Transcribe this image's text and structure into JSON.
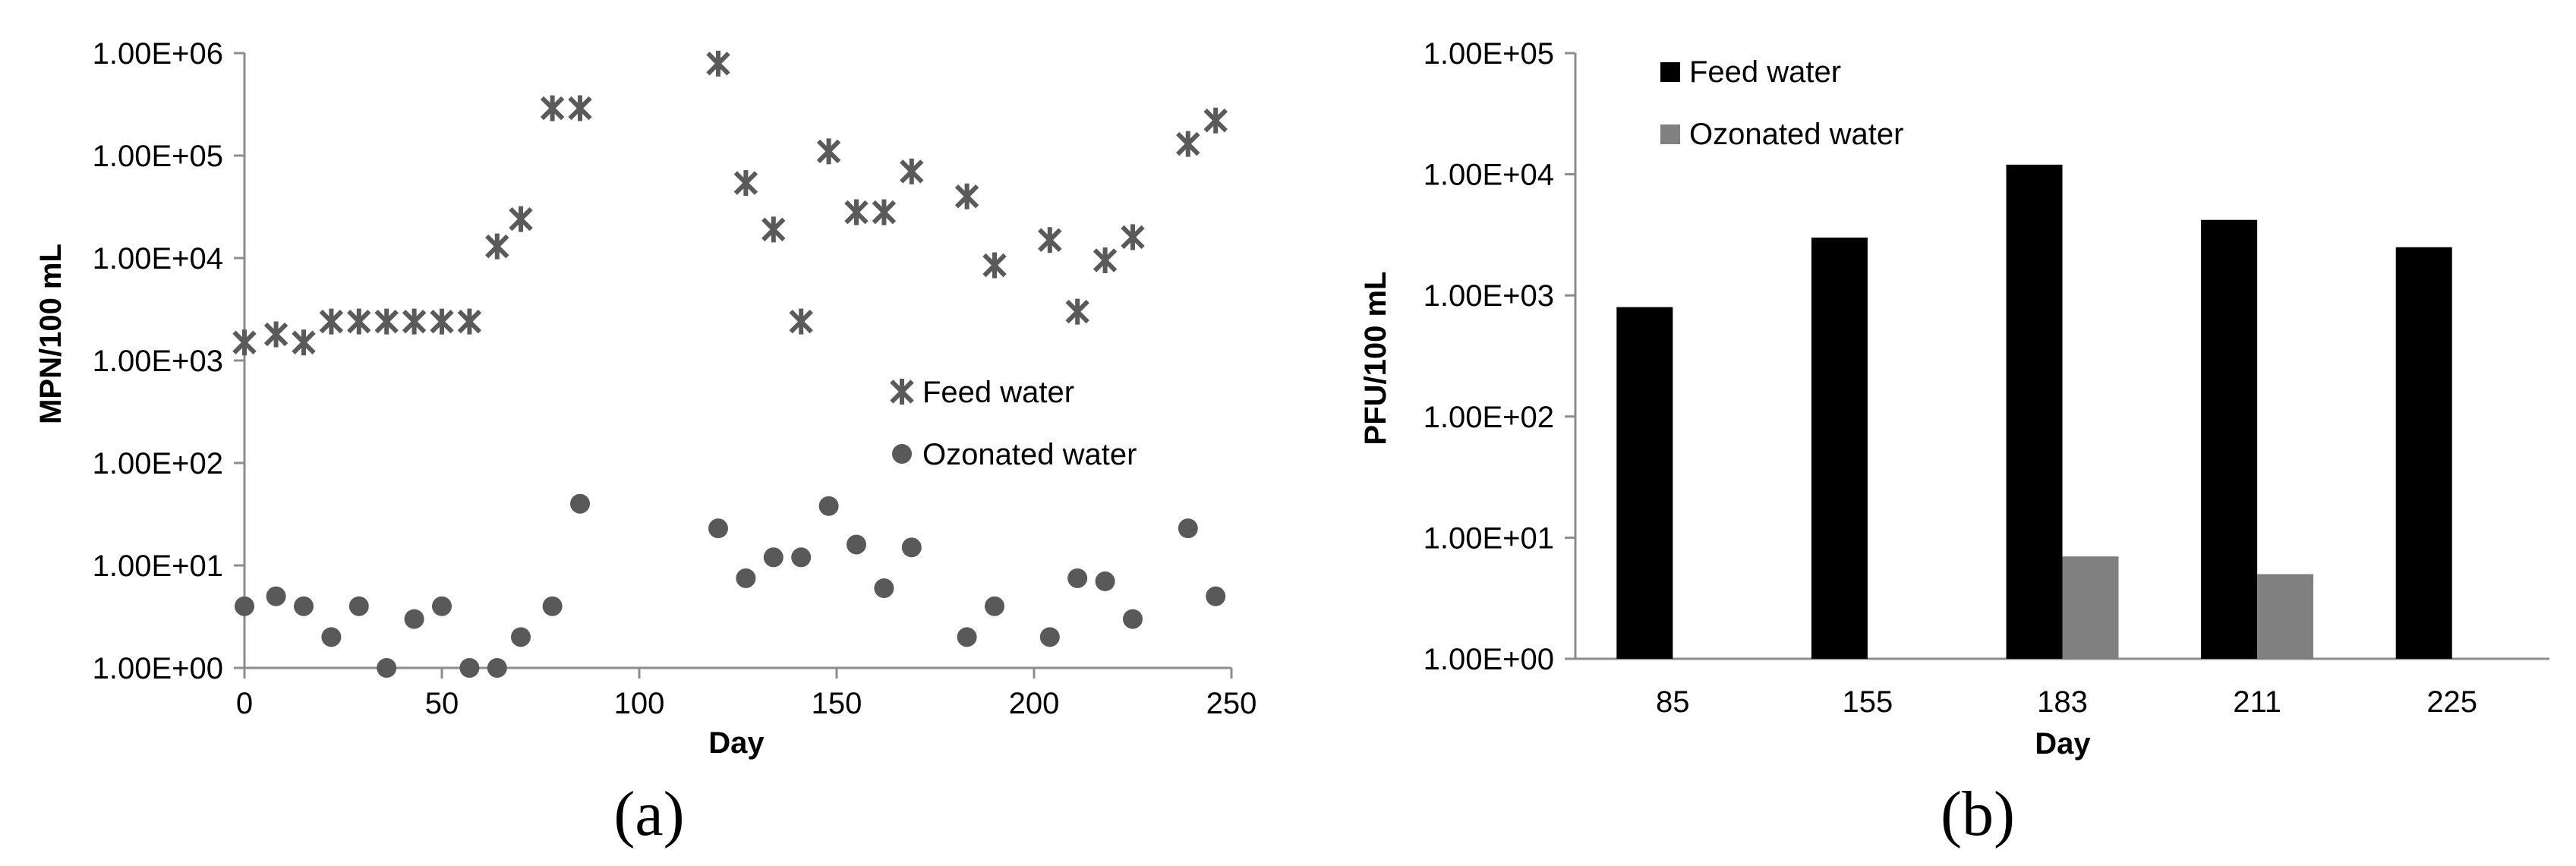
{
  "chart_data": [
    {
      "type": "scatter",
      "panel_label": "(a)",
      "xlabel": "Day",
      "ylabel": "MPN/100 mL",
      "xlim": [
        0,
        250
      ],
      "x_ticks": [
        "0",
        "50",
        "100",
        "150",
        "200",
        "250"
      ],
      "y_scale": "log",
      "ylim": [
        1,
        1000000
      ],
      "y_ticks": [
        "1.00E+00",
        "1.00E+01",
        "1.00E+02",
        "1.00E+03",
        "1.00E+04",
        "1.00E+05",
        "1.00E+06"
      ],
      "grid": false,
      "legend_position": "center-right",
      "series": [
        {
          "name": "Feed water",
          "marker": "asterisk",
          "color": "#5a5a5a",
          "points": [
            {
              "x": 0,
              "y": 1500
            },
            {
              "x": 8,
              "y": 1800
            },
            {
              "x": 15,
              "y": 1500
            },
            {
              "x": 22,
              "y": 2400
            },
            {
              "x": 29,
              "y": 2400
            },
            {
              "x": 36,
              "y": 2400
            },
            {
              "x": 43,
              "y": 2400
            },
            {
              "x": 50,
              "y": 2400
            },
            {
              "x": 57,
              "y": 2400
            },
            {
              "x": 64,
              "y": 13000
            },
            {
              "x": 70,
              "y": 24000
            },
            {
              "x": 78,
              "y": 290000
            },
            {
              "x": 85,
              "y": 290000
            },
            {
              "x": 120,
              "y": 790000
            },
            {
              "x": 127,
              "y": 54000
            },
            {
              "x": 134,
              "y": 19000
            },
            {
              "x": 141,
              "y": 2400
            },
            {
              "x": 148,
              "y": 110000
            },
            {
              "x": 155,
              "y": 28000
            },
            {
              "x": 162,
              "y": 28000
            },
            {
              "x": 169,
              "y": 70000
            },
            {
              "x": 183,
              "y": 40000
            },
            {
              "x": 190,
              "y": 8500
            },
            {
              "x": 204,
              "y": 15000
            },
            {
              "x": 211,
              "y": 3000
            },
            {
              "x": 218,
              "y": 9500
            },
            {
              "x": 225,
              "y": 16000
            },
            {
              "x": 239,
              "y": 130000
            },
            {
              "x": 246,
              "y": 220000
            }
          ]
        },
        {
          "name": "Ozonated water",
          "marker": "circle",
          "color": "#595959",
          "points": [
            {
              "x": 0,
              "y": 4
            },
            {
              "x": 8,
              "y": 5
            },
            {
              "x": 15,
              "y": 4
            },
            {
              "x": 22,
              "y": 2
            },
            {
              "x": 29,
              "y": 4
            },
            {
              "x": 36,
              "y": 1
            },
            {
              "x": 43,
              "y": 3
            },
            {
              "x": 50,
              "y": 4
            },
            {
              "x": 57,
              "y": 1
            },
            {
              "x": 64,
              "y": 1
            },
            {
              "x": 70,
              "y": 2
            },
            {
              "x": 78,
              "y": 4
            },
            {
              "x": 85,
              "y": 40
            },
            {
              "x": 120,
              "y": 23
            },
            {
              "x": 127,
              "y": 7.5
            },
            {
              "x": 134,
              "y": 12
            },
            {
              "x": 141,
              "y": 12
            },
            {
              "x": 148,
              "y": 38
            },
            {
              "x": 155,
              "y": 16
            },
            {
              "x": 162,
              "y": 6
            },
            {
              "x": 169,
              "y": 15
            },
            {
              "x": 183,
              "y": 2
            },
            {
              "x": 190,
              "y": 4
            },
            {
              "x": 204,
              "y": 2
            },
            {
              "x": 211,
              "y": 7.5
            },
            {
              "x": 218,
              "y": 7
            },
            {
              "x": 225,
              "y": 3
            },
            {
              "x": 239,
              "y": 23
            },
            {
              "x": 246,
              "y": 5
            }
          ]
        }
      ]
    },
    {
      "type": "bar",
      "panel_label": "(b)",
      "xlabel": "Day",
      "ylabel": "PFU/100 mL",
      "categories": [
        "85",
        "155",
        "183",
        "211",
        "225"
      ],
      "y_scale": "log",
      "ylim": [
        1,
        100000
      ],
      "y_ticks": [
        "1.00E+00",
        "1.00E+01",
        "1.00E+02",
        "1.00E+03",
        "1.00E+04",
        "1.00E+05"
      ],
      "grid": false,
      "legend_position": "top-left",
      "series": [
        {
          "name": "Feed water",
          "color": "#000000",
          "values": [
            800,
            3000,
            12000,
            4200,
            2500
          ]
        },
        {
          "name": "Ozonated water",
          "color": "#808080",
          "values": [
            null,
            null,
            7,
            5,
            null
          ]
        }
      ]
    }
  ]
}
